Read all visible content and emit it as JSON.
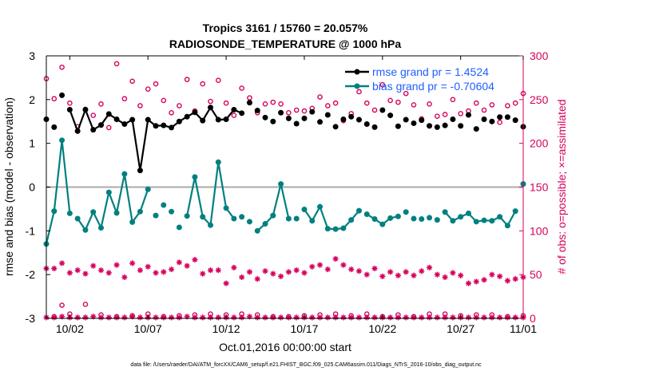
{
  "chart_data": {
    "type": "line",
    "title_line1": "Tropics 3161 / 15760 = 20.057%",
    "title_line2": "RADIOSONDE_TEMPERATURE @ 1000 hPa",
    "xlabel": "Oct.01,2016 00:00:00 start",
    "ylabel_left": "rmse and bias (model - observation)",
    "ylabel_right": "# of obs: o=possible; ×=assimilated",
    "xlim": [
      0.5,
      31.0
    ],
    "ylim_left": [
      -3,
      3
    ],
    "ylim_right": [
      0,
      300
    ],
    "x_ticks": [
      2,
      7,
      12,
      17,
      22,
      27,
      31
    ],
    "x_tick_labels": [
      "10/02",
      "10/07",
      "10/12",
      "10/17",
      "10/22",
      "10/27",
      "11/01"
    ],
    "y_ticks_left": [
      -3,
      -2,
      -1,
      0,
      1,
      2,
      3
    ],
    "y_ticks_right": [
      0,
      50,
      100,
      150,
      200,
      250,
      300
    ],
    "zero_line": 0,
    "footnote": "data file: /Users/raeder/DAI/ATM_forcXX/CAM6_setup/f.e21.FHIST_BGC.f09_025.CAM6assim.011/Diags_NTrS_2016-10/obs_diag_output.nc",
    "colors": {
      "rmse": "#000000",
      "bias": "#008080",
      "obs": "#d6005e",
      "legend_text": "#1f5fff",
      "zero_line": "#aaaaaa"
    },
    "legend": [
      {
        "label": "rmse grand pr = 1.4524",
        "series": "rmse"
      },
      {
        "label": "bias grand pr = -0.70604",
        "series": "bias"
      }
    ],
    "series": [
      {
        "name": "rmse",
        "x": [
          0.5,
          1.0,
          1.5,
          2.0,
          2.5,
          3.0,
          3.5,
          4.0,
          4.5,
          5.0,
          5.5,
          6.0,
          6.5,
          7.0,
          7.5,
          8.0,
          8.5,
          9.0,
          9.5,
          10.0,
          10.5,
          11.0,
          11.5,
          12.0,
          12.5,
          13.0,
          13.5,
          14.0,
          14.5,
          15.0,
          15.5,
          16.0,
          16.5,
          17.0,
          17.5,
          18.0,
          18.5,
          19.0,
          19.5,
          20.0,
          20.5,
          21.0,
          21.5,
          22.0,
          22.5,
          23.0,
          23.5,
          24.0,
          24.5,
          25.0,
          25.5,
          26.0,
          26.5,
          27.0,
          27.5,
          28.0,
          28.5,
          29.0,
          29.5,
          30.0,
          30.5,
          31.0
        ],
        "y": [
          1.55,
          1.37,
          2.1,
          1.77,
          1.28,
          1.77,
          1.31,
          1.42,
          1.67,
          1.55,
          1.44,
          1.54,
          0.38,
          1.54,
          1.4,
          1.41,
          1.36,
          1.5,
          1.61,
          1.71,
          1.52,
          1.82,
          1.54,
          1.55,
          1.77,
          1.69,
          1.93,
          1.75,
          1.59,
          1.5,
          1.7,
          1.57,
          1.45,
          1.57,
          1.72,
          1.49,
          1.65,
          1.38,
          1.55,
          1.61,
          1.54,
          1.44,
          1.37,
          1.76,
          1.64,
          1.39,
          1.54,
          1.46,
          1.53,
          1.4,
          1.37,
          1.41,
          1.55,
          1.4,
          1.65,
          1.33,
          1.55,
          1.5,
          1.6,
          1.6,
          1.53,
          1.38
        ]
      },
      {
        "name": "bias",
        "x": [
          0.5,
          1.0,
          1.5,
          2.0,
          2.5,
          3.0,
          3.5,
          4.0,
          4.5,
          5.0,
          5.5,
          6.0,
          6.5,
          7.0,
          7.5,
          8.0,
          8.5,
          9.0,
          9.5,
          10.0,
          10.5,
          11.0,
          11.5,
          12.0,
          12.5,
          13.0,
          13.5,
          14.0,
          14.5,
          15.0,
          15.5,
          16.0,
          16.5,
          17.0,
          17.5,
          18.0,
          18.5,
          19.0,
          19.5,
          20.0,
          20.5,
          21.0,
          21.5,
          22.0,
          22.5,
          23.0,
          23.5,
          24.0,
          24.5,
          25.0,
          25.5,
          26.0,
          26.5,
          27.0,
          27.5,
          28.0,
          28.5,
          29.0,
          29.5,
          30.0,
          30.5,
          31.0
        ],
        "y": [
          -1.3,
          -0.55,
          1.07,
          -0.6,
          -0.72,
          -0.98,
          -0.57,
          -0.93,
          -0.12,
          -0.59,
          0.3,
          -0.8,
          -0.56,
          -0.05,
          -0.65,
          -0.41,
          -0.56,
          -0.92,
          -0.66,
          0.23,
          -0.68,
          -0.87,
          0.57,
          -0.48,
          -0.72,
          -0.68,
          -0.79,
          -1.0,
          -0.84,
          -0.65,
          0.07,
          -0.72,
          -0.72,
          -0.51,
          -0.77,
          -0.45,
          -0.95,
          -0.96,
          -0.94,
          -0.75,
          -0.54,
          -0.62,
          -0.73,
          -0.85,
          -0.71,
          -0.67,
          -0.57,
          -0.72,
          -0.73,
          -0.7,
          -0.75,
          -0.57,
          -0.77,
          -0.68,
          -0.6,
          -0.79,
          -0.76,
          -0.77,
          -0.68,
          -0.88,
          -0.55,
          0.07
        ]
      },
      {
        "name": "obs_possible",
        "x": [
          0.5,
          1.0,
          1.5,
          2.0,
          2.5,
          3.0,
          3.5,
          4.0,
          4.5,
          5.0,
          5.5,
          6.0,
          6.5,
          7.0,
          7.5,
          8.0,
          8.5,
          9.0,
          9.5,
          10.0,
          10.5,
          11.0,
          11.5,
          12.0,
          12.5,
          13.0,
          13.5,
          14.0,
          14.5,
          15.0,
          15.5,
          16.0,
          16.5,
          17.0,
          17.5,
          18.0,
          18.5,
          19.0,
          19.5,
          20.0,
          20.5,
          21.0,
          21.5,
          22.0,
          22.5,
          23.0,
          23.5,
          24.0,
          24.5,
          25.0,
          25.5,
          26.0,
          26.5,
          27.0,
          27.5,
          28.0,
          28.5,
          29.0,
          29.5,
          30.0,
          30.5,
          31.0
        ],
        "y": [
          274,
          251,
          287,
          246,
          219,
          239,
          232,
          245,
          218,
          291,
          251,
          271,
          243,
          262,
          268,
          249,
          235,
          243,
          273,
          237,
          268,
          248,
          272,
          246,
          232,
          263,
          252,
          235,
          245,
          247,
          245,
          235,
          238,
          237,
          240,
          253,
          243,
          246,
          226,
          234,
          259,
          246,
          238,
          267,
          249,
          247,
          257,
          244,
          228,
          245,
          231,
          233,
          250,
          234,
          237,
          246,
          238,
          244,
          224,
          243,
          246,
          257
        ]
      },
      {
        "name": "obs_possible_low",
        "x": [
          1.0,
          1.5,
          2.0,
          3.0,
          4.0,
          5.0,
          6.0,
          7.0,
          8.0,
          9.0,
          10.0,
          11.0,
          12.0,
          13.0,
          14.0,
          15.0,
          16.0,
          17.0,
          18.0,
          19.0,
          20.0,
          21.0,
          22.0,
          23.0,
          24.0,
          25.0,
          26.0,
          27.0,
          28.0,
          29.0,
          30.0,
          31.0
        ],
        "y": [
          2,
          15,
          5,
          16,
          4,
          2,
          3,
          5,
          2,
          3,
          4,
          5,
          4,
          5,
          4,
          2,
          2,
          3,
          4,
          5,
          3,
          5,
          2,
          4,
          2,
          5,
          5,
          3,
          4,
          4,
          2,
          3
        ]
      },
      {
        "name": "obs_assimilated",
        "x": [
          0.5,
          1.0,
          1.5,
          2.0,
          2.5,
          3.0,
          3.5,
          4.0,
          4.5,
          5.0,
          5.5,
          6.0,
          6.5,
          7.0,
          7.5,
          8.0,
          8.5,
          9.0,
          9.5,
          10.0,
          10.5,
          11.0,
          11.5,
          12.0,
          12.5,
          13.0,
          13.5,
          14.0,
          14.5,
          15.0,
          15.5,
          16.0,
          16.5,
          17.0,
          17.5,
          18.0,
          18.5,
          19.0,
          19.5,
          20.0,
          20.5,
          21.0,
          21.5,
          22.0,
          22.5,
          23.0,
          23.5,
          24.0,
          24.5,
          25.0,
          25.5,
          26.0,
          26.5,
          27.0,
          27.5,
          28.0,
          28.5,
          29.0,
          29.5,
          30.0,
          30.5,
          31.0
        ],
        "y": [
          57,
          57,
          63,
          52,
          55,
          51,
          60,
          55,
          52,
          61,
          47,
          63,
          55,
          59,
          52,
          53,
          56,
          64,
          60,
          67,
          51,
          55,
          55,
          40,
          58,
          47,
          53,
          45,
          54,
          51,
          48,
          53,
          55,
          52,
          59,
          61,
          56,
          68,
          61,
          56,
          54,
          50,
          57,
          48,
          53,
          49,
          53,
          49,
          54,
          58,
          50,
          47,
          52,
          49,
          40,
          42,
          44,
          50,
          48,
          43,
          45,
          47
        ]
      },
      {
        "name": "obs_assimilated_low",
        "x": [
          0.5,
          1.0,
          1.5,
          2.0,
          2.5,
          3.0,
          3.5,
          4.0,
          4.5,
          5.0,
          5.5,
          6.0,
          6.5,
          7.0,
          7.5,
          8.0,
          8.5,
          9.0,
          9.5,
          10.0,
          10.5,
          11.0,
          11.5,
          12.0,
          12.5,
          13.0,
          13.5,
          14.0,
          14.5,
          15.0,
          15.5,
          16.0,
          16.5,
          17.0,
          17.5,
          18.0,
          18.5,
          19.0,
          19.5,
          20.0,
          20.5,
          21.0,
          21.5,
          22.0,
          22.5,
          23.0,
          23.5,
          24.0,
          24.5,
          25.0,
          25.5,
          26.0,
          26.5,
          27.0,
          27.5,
          28.0,
          28.5,
          29.0,
          29.5,
          30.0,
          30.5,
          31.0
        ],
        "y": [
          1,
          1,
          2,
          1,
          1,
          1,
          2,
          1,
          1,
          1,
          1,
          2,
          1,
          1,
          1,
          1,
          1,
          1,
          2,
          1,
          1,
          1,
          1,
          1,
          1,
          1,
          2,
          1,
          1,
          1,
          1,
          1,
          1,
          1,
          1,
          1,
          1,
          1,
          1,
          1,
          1,
          1,
          1,
          1,
          1,
          1,
          1,
          1,
          1,
          1,
          1,
          1,
          1,
          1,
          1,
          1,
          1,
          1,
          1,
          1,
          1,
          1
        ]
      }
    ],
    "rmse_line_segment": [
      2,
      13
    ],
    "bias_line_segments": [
      [
        0.5,
        2.0
      ],
      [
        2.5,
        7.0
      ],
      [
        9.5,
        12.5
      ],
      [
        14.0,
        16.0
      ],
      [
        17.0,
        20.5
      ],
      [
        21.0,
        23.0
      ],
      [
        26.0,
        30.5
      ]
    ]
  }
}
